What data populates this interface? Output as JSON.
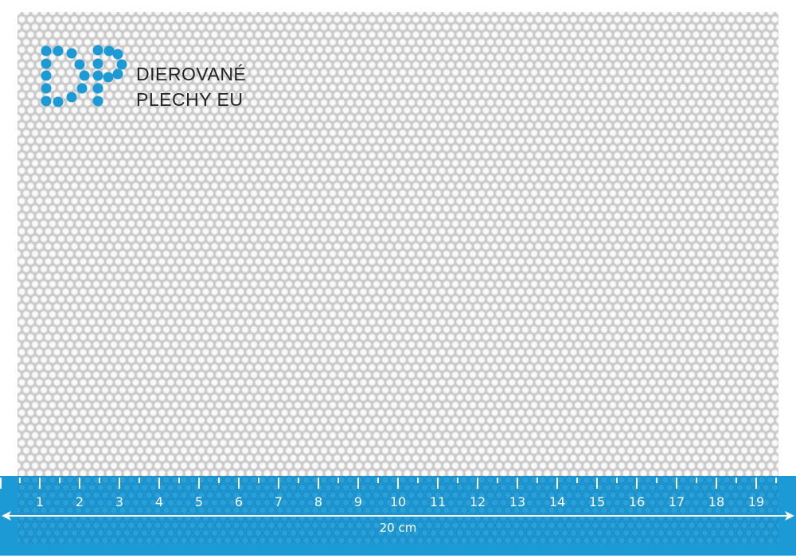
{
  "brand": {
    "line1": "DIEROVANÉ",
    "line2": "PLECHY EU",
    "logo_letters": "DP",
    "accent_color": "#1c9ad6"
  },
  "ruler": {
    "labels": [
      "1",
      "2",
      "3",
      "4",
      "5",
      "6",
      "7",
      "8",
      "9",
      "10",
      "11",
      "12",
      "13",
      "14",
      "15",
      "16",
      "17",
      "18",
      "19"
    ],
    "length_label": "20 cm",
    "band_color": "#1c9ad6"
  }
}
